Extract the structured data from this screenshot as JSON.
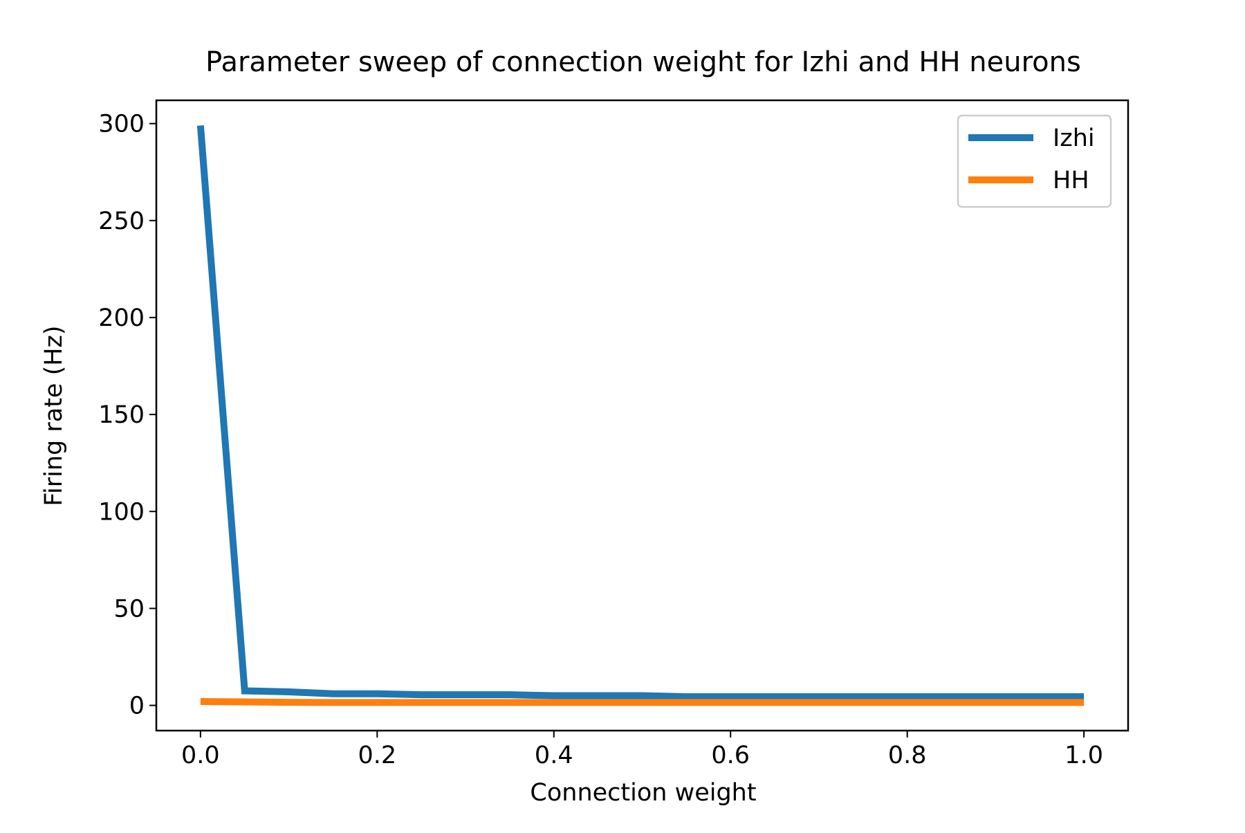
{
  "chart_data": {
    "type": "line",
    "title": "Parameter sweep of connection weight for Izhi and HH neurons",
    "xlabel": "Connection weight",
    "ylabel": "Firing rate (Hz)",
    "xlim": [
      -0.05,
      1.05
    ],
    "ylim": [
      -13,
      312
    ],
    "xticks": [
      "0.0",
      "0.2",
      "0.4",
      "0.6",
      "0.8",
      "1.0"
    ],
    "yticks": [
      "0",
      "50",
      "100",
      "150",
      "200",
      "250",
      "300"
    ],
    "grid": false,
    "legend_position": "top-right",
    "x": [
      0.0,
      0.05,
      0.1,
      0.15,
      0.2,
      0.25,
      0.3,
      0.35,
      0.4,
      0.45,
      0.5,
      0.55,
      0.6,
      0.65,
      0.7,
      0.75,
      0.8,
      0.85,
      0.9,
      0.95,
      1.0
    ],
    "series": [
      {
        "name": "Izhi",
        "color": "#1f77b4",
        "values": [
          299,
          7.5,
          7,
          6,
          6,
          5.5,
          5.5,
          5.5,
          5,
          5,
          5,
          4.5,
          4.5,
          4.5,
          4.5,
          4.5,
          4.5,
          4.5,
          4.5,
          4.5,
          4.5
        ]
      },
      {
        "name": "HH",
        "color": "#ff7f0e",
        "values": [
          2,
          1.8,
          1.6,
          1.5,
          1.5,
          1.5,
          1.5,
          1.5,
          1.5,
          1.5,
          1.5,
          1.5,
          1.5,
          1.5,
          1.5,
          1.5,
          1.5,
          1.5,
          1.5,
          1.5,
          1.5
        ]
      }
    ]
  }
}
